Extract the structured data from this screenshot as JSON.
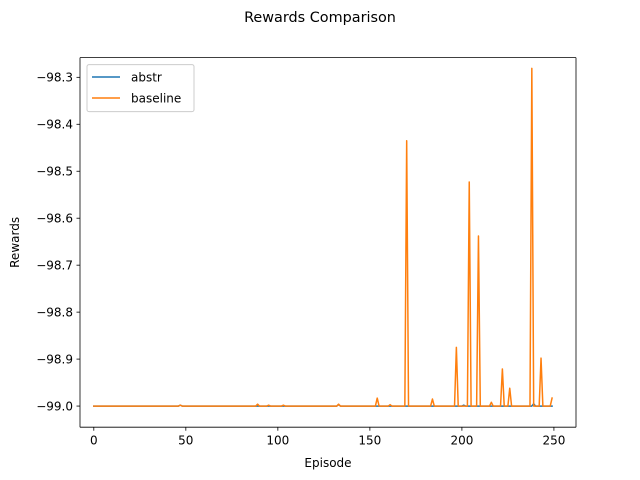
{
  "chart_data": {
    "type": "line",
    "title": "Rewards Comparison",
    "xlabel": "Episode",
    "ylabel": "Rewards",
    "xlim": [
      -7.5,
      262
    ],
    "ylim": [
      -99.045,
      -98.258
    ],
    "xticks": [
      0,
      50,
      100,
      150,
      200,
      250
    ],
    "xtick_labels": [
      "0",
      "50",
      "100",
      "150",
      "200",
      "250"
    ],
    "yticks": [
      -99.0,
      -98.9,
      -98.8,
      -98.7,
      -98.6,
      -98.5,
      -98.4,
      -98.3
    ],
    "ytick_labels": [
      "−99.0",
      "−98.9",
      "−98.8",
      "−98.7",
      "−98.6",
      "−98.5",
      "−98.4",
      "−98.3"
    ],
    "grid": false,
    "legend": {
      "position": "top-left"
    },
    "series": [
      {
        "name": "abstr",
        "color": "#1f77b4",
        "points": [
          [
            0,
            -99.0
          ],
          [
            46,
            -99.0
          ],
          [
            47,
            -98.998
          ],
          [
            48,
            -99.0
          ],
          [
            132,
            -99.0
          ],
          [
            133,
            -98.997
          ],
          [
            134,
            -99.0
          ],
          [
            200,
            -99.0
          ],
          [
            201,
            -98.998
          ],
          [
            202,
            -99.0
          ],
          [
            238,
            -99.0
          ],
          [
            239,
            -98.995
          ],
          [
            240,
            -99.0
          ],
          [
            249,
            -99.0
          ]
        ]
      },
      {
        "name": "baseline",
        "color": "#ff7f0e",
        "points": [
          [
            0,
            -99.0
          ],
          [
            46,
            -99.0
          ],
          [
            47,
            -98.998
          ],
          [
            48,
            -99.0
          ],
          [
            88,
            -99.0
          ],
          [
            89,
            -98.996
          ],
          [
            90,
            -99.0
          ],
          [
            94,
            -99.0
          ],
          [
            95,
            -98.998
          ],
          [
            96,
            -99.0
          ],
          [
            102,
            -99.0
          ],
          [
            103,
            -98.998
          ],
          [
            104,
            -99.0
          ],
          [
            132,
            -99.0
          ],
          [
            133,
            -98.996
          ],
          [
            134,
            -99.0
          ],
          [
            153,
            -99.0
          ],
          [
            154,
            -98.983
          ],
          [
            155,
            -99.0
          ],
          [
            160,
            -99.0
          ],
          [
            161,
            -98.997
          ],
          [
            162,
            -99.0
          ],
          [
            169,
            -99.0
          ],
          [
            170,
            -98.435
          ],
          [
            171,
            -99.0
          ],
          [
            183,
            -99.0
          ],
          [
            184,
            -98.985
          ],
          [
            185,
            -99.0
          ],
          [
            196,
            -99.0
          ],
          [
            197,
            -98.875
          ],
          [
            198,
            -99.0
          ],
          [
            203,
            -99.0
          ],
          [
            204,
            -98.523
          ],
          [
            205,
            -99.0
          ],
          [
            208,
            -99.0
          ],
          [
            209,
            -98.638
          ],
          [
            210,
            -99.0
          ],
          [
            215,
            -99.0
          ],
          [
            216,
            -98.992
          ],
          [
            217,
            -99.0
          ],
          [
            221,
            -99.0
          ],
          [
            222,
            -98.921
          ],
          [
            223,
            -99.0
          ],
          [
            225,
            -99.0
          ],
          [
            226,
            -98.962
          ],
          [
            227,
            -99.0
          ],
          [
            237,
            -99.0
          ],
          [
            238,
            -98.281
          ],
          [
            239,
            -99.0
          ],
          [
            242,
            -99.0
          ],
          [
            243,
            -98.898
          ],
          [
            244,
            -99.0
          ],
          [
            248,
            -99.0
          ],
          [
            249,
            -98.983
          ]
        ]
      }
    ]
  }
}
